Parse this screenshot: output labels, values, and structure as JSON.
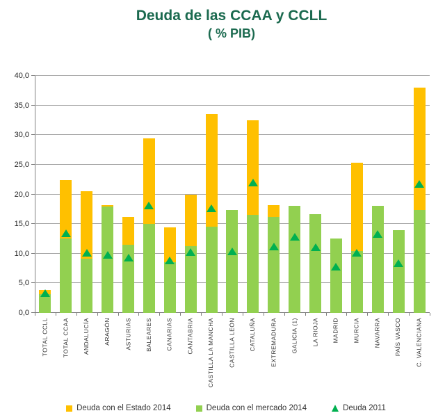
{
  "title": "Deuda de las CCAA y CCLL",
  "subtitle": "( % PIB)",
  "colors": {
    "title": "#1B6A4F",
    "estado": "#FFC000",
    "mercado": "#92D050",
    "deuda2011": "#00B050",
    "grid": "#A6A6A6",
    "axis": "#7F7F7F",
    "text": "#333333"
  },
  "chart_data": {
    "type": "bar",
    "stacked": true,
    "title": "Deuda de las CCAA y CCLL",
    "subtitle": "( % PIB)",
    "ylabel": "",
    "xlabel": "",
    "ylim": [
      0,
      40
    ],
    "y_tick_step": 5,
    "y_tick_labels": [
      "0,0",
      "5,0",
      "10,0",
      "15,0",
      "20,0",
      "25,0",
      "30,0",
      "35,0",
      "40,0"
    ],
    "grid": true,
    "legend_position": "bottom",
    "categories": [
      "TOTAL CCLL",
      "TOTAL CCAA",
      "ANDALUCÍA",
      "ARAGÓN",
      "ASTURIAS",
      "BALEARES",
      "CANARIAS",
      "CANTABRIA",
      "CASTILLA LA MANCHA",
      "CASTILLA LEÓN",
      "CATALUÑA",
      "EXTREMADURA",
      "GALICIA (1)",
      "LA RIOJA",
      "MADRID",
      "MURCIA",
      "NAVARRA",
      "PAÍS VASCO",
      "C. VALENCIANA"
    ],
    "series": [
      {
        "name": "Deuda con el Estado 2014",
        "role": "stack-top-segment",
        "color": "#FFC000",
        "values": [
          0.7,
          9.8,
          11.4,
          0.3,
          4.7,
          14.4,
          5.8,
          8.6,
          19.0,
          0,
          16.0,
          2.0,
          0,
          0,
          0,
          14.9,
          0,
          0,
          20.6
        ]
      },
      {
        "name": "Deuda con el mercado 2014",
        "role": "stack-base-segment",
        "color": "#92D050",
        "values": [
          3.2,
          12.6,
          9.1,
          17.9,
          11.5,
          15.0,
          8.6,
          11.3,
          14.6,
          17.4,
          16.5,
          16.2,
          18.1,
          16.7,
          12.6,
          10.4,
          18.1,
          14.0,
          17.4
        ]
      },
      {
        "name": "Deuda 2011",
        "role": "triangle-marker",
        "color": "#00B050",
        "values": [
          3.3,
          13.4,
          10.1,
          9.8,
          9.3,
          18.1,
          8.9,
          10.3,
          17.6,
          10.4,
          22.0,
          11.2,
          12.8,
          11.1,
          7.8,
          10.1,
          13.3,
          8.4,
          21.8
        ]
      }
    ],
    "totals_2014": [
      3.9,
      22.4,
      20.5,
      18.2,
      16.2,
      29.4,
      14.4,
      19.9,
      33.6,
      17.4,
      32.5,
      18.2,
      18.1,
      16.7,
      12.6,
      25.3,
      18.1,
      14.0,
      38.0
    ]
  }
}
